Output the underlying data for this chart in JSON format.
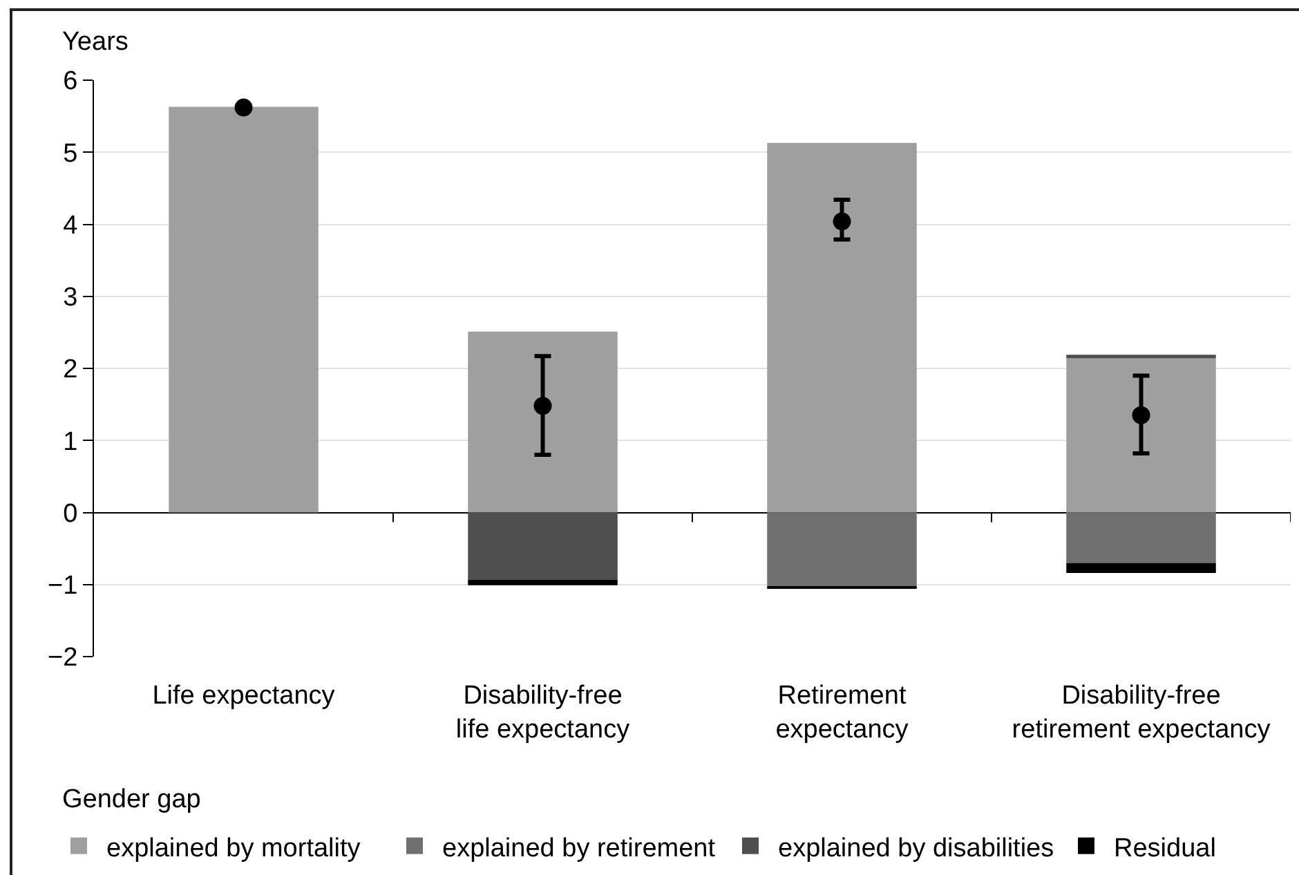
{
  "chart_data": {
    "type": "bar",
    "stacked": true,
    "ylabel": "Years",
    "categories": [
      "Life expectancy",
      "Disability-free\nlife expectancy",
      "Retirement\nexpectancy",
      "Disability-free\nretirement expectancy"
    ],
    "series": [
      {
        "name": "explained by mortality",
        "color": "#9f9f9f",
        "values": [
          5.63,
          2.51,
          5.13,
          2.14
        ]
      },
      {
        "name": "explained by retirement",
        "color": "#707070",
        "values": [
          null,
          null,
          -1.02,
          -0.7
        ]
      },
      {
        "name": "explained by disabilities",
        "color": "#4f4f4f",
        "values": [
          null,
          -0.93,
          null,
          0.05
        ]
      },
      {
        "name": "Residual",
        "color": "#000000",
        "values": [
          null,
          -0.08,
          -0.04,
          -0.14
        ]
      },
      {
        "type": "scatter",
        "color": "#000000",
        "marker": "circle",
        "x": [
          "Life expectancy",
          "Disability-free\nlife expectancy",
          "Retirement\nexpectancy",
          "Disability-free\nretirement expectancy"
        ],
        "values": [
          5.62,
          1.48,
          4.04,
          1.35
        ],
        "errors": [
          null,
          [
            0.8,
            2.17
          ],
          [
            3.79,
            4.34
          ],
          [
            0.82,
            1.9
          ]
        ]
      }
    ],
    "ylim": [
      -2,
      6
    ],
    "yticks": [
      {
        "value": -2,
        "label": "−2"
      },
      {
        "value": -1,
        "label": "−1"
      },
      0,
      1,
      2,
      3,
      4,
      5,
      6
    ],
    "grid": "y",
    "legend": "bottom",
    "legend_title": "Gender gap"
  }
}
